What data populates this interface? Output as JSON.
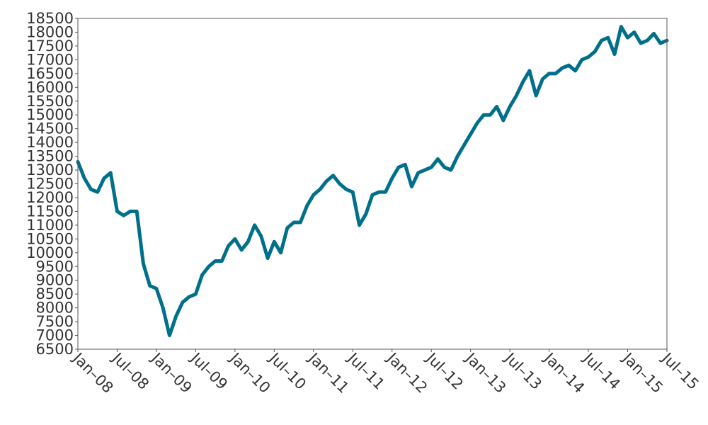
{
  "chart_data": {
    "type": "line",
    "title": "",
    "xlabel": "",
    "ylabel": "",
    "ylim": [
      6500,
      18500
    ],
    "y_ticks": [
      6500,
      7000,
      7500,
      8000,
      8500,
      9000,
      9500,
      10000,
      10500,
      11000,
      11500,
      12000,
      12500,
      13000,
      13500,
      14000,
      14500,
      15000,
      15500,
      16000,
      16500,
      17000,
      17500,
      18000,
      18500
    ],
    "x_tick_labels": [
      "Jan–08",
      "Jul–08",
      "Jan–09",
      "Jul–09",
      "Jan–10",
      "Jul–10",
      "Jan–11",
      "Jul–11",
      "Jan–12",
      "Jul–12",
      "Jan–13",
      "Jul–13",
      "Jan–14",
      "Jul–14",
      "Jan–15",
      "Jul–15"
    ],
    "xlim": [
      "2008-01",
      "2015-07"
    ],
    "grid": false,
    "legend": "none",
    "line_color": "#00708a",
    "series": [
      {
        "dates": [
          "2008-01",
          "2008-02",
          "2008-03",
          "2008-04",
          "2008-05",
          "2008-06",
          "2008-07",
          "2008-08",
          "2008-09",
          "2008-10",
          "2008-11",
          "2008-12",
          "2009-01",
          "2009-02",
          "2009-03",
          "2009-04",
          "2009-05",
          "2009-06",
          "2009-07",
          "2009-08",
          "2009-09",
          "2009-10",
          "2009-11",
          "2009-12",
          "2010-01",
          "2010-02",
          "2010-03",
          "2010-04",
          "2010-05",
          "2010-06",
          "2010-07",
          "2010-08",
          "2010-09",
          "2010-10",
          "2010-11",
          "2010-12",
          "2011-01",
          "2011-02",
          "2011-03",
          "2011-04",
          "2011-05",
          "2011-06",
          "2011-07",
          "2011-08",
          "2011-09",
          "2011-10",
          "2011-11",
          "2011-12",
          "2012-01",
          "2012-02",
          "2012-03",
          "2012-04",
          "2012-05",
          "2012-06",
          "2012-07",
          "2012-08",
          "2012-09",
          "2012-10",
          "2012-11",
          "2012-12",
          "2013-01",
          "2013-02",
          "2013-03",
          "2013-04",
          "2013-05",
          "2013-06",
          "2013-07",
          "2013-08",
          "2013-09",
          "2013-10",
          "2013-11",
          "2013-12",
          "2014-01",
          "2014-02",
          "2014-03",
          "2014-04",
          "2014-05",
          "2014-06",
          "2014-07",
          "2014-08",
          "2014-09",
          "2014-10",
          "2014-11",
          "2014-12",
          "2015-01",
          "2015-02",
          "2015-03",
          "2015-04",
          "2015-05",
          "2015-06",
          "2015-07"
        ],
        "values": [
          13300,
          12700,
          12300,
          12200,
          12700,
          12900,
          11500,
          11350,
          11500,
          11500,
          9600,
          8800,
          8700,
          8000,
          7000,
          7700,
          8200,
          8400,
          8500,
          9200,
          9500,
          9700,
          9700,
          10250,
          10500,
          10100,
          10400,
          11000,
          10600,
          9800,
          10400,
          10000,
          10900,
          11100,
          11100,
          11700,
          12100,
          12300,
          12600,
          12800,
          12500,
          12300,
          12200,
          11000,
          11400,
          12100,
          12200,
          12200,
          12700,
          13100,
          13200,
          12400,
          12900,
          13000,
          13100,
          13400,
          13100,
          13000,
          13500,
          13900,
          14300,
          14700,
          15000,
          15000,
          15300,
          14800,
          15300,
          15700,
          16200,
          16600,
          15700,
          16300,
          16500,
          16500,
          16700,
          16800,
          16600,
          17000,
          17100,
          17300,
          17700,
          17800,
          17200,
          18200,
          17800,
          18000,
          17600,
          17700,
          17950,
          17600,
          17700
        ]
      }
    ]
  }
}
